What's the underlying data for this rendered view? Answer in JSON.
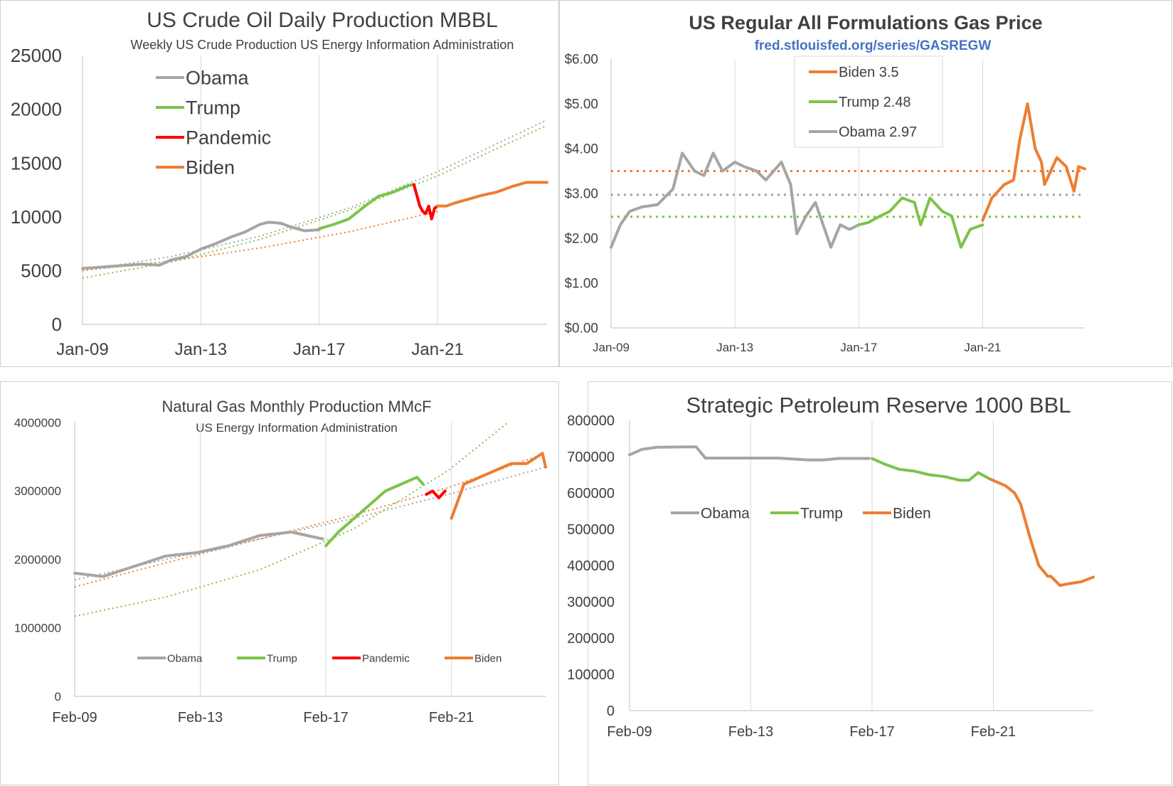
{
  "colors": {
    "obama": "#a5a5a5",
    "trump": "#7dc34a",
    "pandemic": "#ff0000",
    "biden": "#ed7d31",
    "axis": "#404040",
    "grid": "#d9d9d9",
    "link": "#4472c4"
  },
  "chart_data": [
    {
      "type": "line",
      "title": "US Crude Oil Daily Production MBBL",
      "subtitle": "Weekly US Crude Production US Energy Information Administration",
      "xlabel": "",
      "ylabel": "",
      "x_ticks": [
        "Jan-09",
        "Jan-13",
        "Jan-17",
        "Jan-21"
      ],
      "x_tick_years": [
        2009,
        2013,
        2017,
        2021
      ],
      "xlim": [
        2009.0,
        2024.7
      ],
      "ylim": [
        0,
        25000
      ],
      "y_ticks": [
        0,
        5000,
        10000,
        15000,
        20000,
        25000
      ],
      "grid": "vertical",
      "legend": "top-left",
      "series": [
        {
          "name": "Obama",
          "color_key": "obama",
          "x": [
            2009.0,
            2010.0,
            2011.0,
            2011.6,
            2012.0,
            2012.5,
            2013.0,
            2013.5,
            2014.0,
            2014.5,
            2015.0,
            2015.3,
            2015.7,
            2016.0,
            2016.5,
            2017.0
          ],
          "y": [
            5200,
            5400,
            5600,
            5500,
            6000,
            6300,
            7000,
            7500,
            8100,
            8600,
            9300,
            9500,
            9400,
            9100,
            8700,
            8800
          ]
        },
        {
          "name": "Trump",
          "color_key": "trump",
          "x": [
            2017.0,
            2017.5,
            2018.0,
            2018.5,
            2019.0,
            2019.5,
            2020.0,
            2020.2
          ],
          "y": [
            8900,
            9300,
            9800,
            10900,
            11900,
            12300,
            12900,
            13000
          ]
        },
        {
          "name": "Pandemic",
          "color_key": "pandemic",
          "x": [
            2020.2,
            2020.3,
            2020.4,
            2020.5,
            2020.6,
            2020.7,
            2020.8,
            2020.9,
            2021.0
          ],
          "y": [
            13000,
            12000,
            11000,
            10500,
            10300,
            11000,
            9800,
            10800,
            11000
          ]
        },
        {
          "name": "Biden",
          "color_key": "biden",
          "x": [
            2021.0,
            2021.3,
            2021.6,
            2022.0,
            2022.5,
            2023.0,
            2023.5,
            2024.0,
            2024.7
          ],
          "y": [
            11000,
            11000,
            11300,
            11600,
            12000,
            12300,
            12800,
            13200,
            13200
          ]
        }
      ],
      "trendlines": [
        {
          "color_key": "obama",
          "x": [
            2009.0,
            2012.0,
            2015.0,
            2018.0,
            2021.0,
            2024.7
          ],
          "y": [
            5000,
            6300,
            8200,
            10800,
            14200,
            19000
          ]
        },
        {
          "color_key": "trump",
          "x": [
            2009.0,
            2012.0,
            2015.0,
            2018.0,
            2021.0,
            2024.7
          ],
          "y": [
            4300,
            5800,
            7900,
            10600,
            13800,
            18500
          ]
        },
        {
          "color_key": "biden",
          "x": [
            2009.0,
            2012.0,
            2015.0,
            2018.0,
            2021.0
          ],
          "y": [
            5000,
            5900,
            7100,
            8600,
            10500
          ]
        }
      ]
    },
    {
      "type": "line",
      "title": "US Regular All Formulations Gas Price",
      "subtitle": "fred.stlouisfed.org/series/GASREGW",
      "xlabel": "",
      "ylabel": "",
      "x_ticks": [
        "Jan-09",
        "Jan-13",
        "Jan-17",
        "Jan-21"
      ],
      "x_tick_years": [
        2009,
        2013,
        2017,
        2021
      ],
      "xlim": [
        2009.0,
        2024.3
      ],
      "ylim": [
        0,
        6
      ],
      "y_ticks": [
        "$0.00",
        "$1.00",
        "$2.00",
        "$3.00",
        "$4.00",
        "$5.00",
        "$6.00"
      ],
      "grid": "vertical",
      "legend": "top-center",
      "series": [
        {
          "name": "Obama 2.97",
          "color_key": "obama",
          "x": [
            2009.0,
            2009.3,
            2009.6,
            2010.0,
            2010.5,
            2011.0,
            2011.3,
            2011.7,
            2012.0,
            2012.3,
            2012.6,
            2013.0,
            2013.3,
            2013.7,
            2014.0,
            2014.5,
            2014.8,
            2015.0,
            2015.3,
            2015.6,
            2015.9,
            2016.1,
            2016.4,
            2016.7,
            2017.0
          ],
          "y": [
            1.8,
            2.3,
            2.6,
            2.7,
            2.75,
            3.1,
            3.9,
            3.5,
            3.4,
            3.9,
            3.5,
            3.7,
            3.6,
            3.5,
            3.3,
            3.7,
            3.2,
            2.1,
            2.5,
            2.8,
            2.2,
            1.8,
            2.3,
            2.2,
            2.3
          ]
        },
        {
          "name": "Trump 2.48",
          "color_key": "trump",
          "x": [
            2017.0,
            2017.3,
            2017.7,
            2018.0,
            2018.4,
            2018.8,
            2019.0,
            2019.3,
            2019.7,
            2020.0,
            2020.3,
            2020.6,
            2021.0
          ],
          "y": [
            2.3,
            2.35,
            2.5,
            2.6,
            2.9,
            2.8,
            2.3,
            2.9,
            2.6,
            2.5,
            1.8,
            2.2,
            2.3
          ]
        },
        {
          "name": "Biden 3.5",
          "color_key": "biden",
          "x": [
            2021.0,
            2021.3,
            2021.7,
            2022.0,
            2022.2,
            2022.45,
            2022.7,
            2022.9,
            2023.0,
            2023.4,
            2023.7,
            2023.95,
            2024.1,
            2024.3
          ],
          "y": [
            2.4,
            2.9,
            3.2,
            3.3,
            4.2,
            5.0,
            4.0,
            3.7,
            3.2,
            3.8,
            3.6,
            3.05,
            3.6,
            3.55
          ]
        }
      ],
      "reference_lines": [
        {
          "color_key": "biden",
          "y": 3.5
        },
        {
          "color_key": "obama",
          "y": 2.97
        },
        {
          "color_key": "trump",
          "y": 2.48
        }
      ]
    },
    {
      "type": "line",
      "title": "Natural Gas Monthly Production MMcF",
      "subtitle": "US Energy Information Administration",
      "xlabel": "",
      "ylabel": "",
      "x_ticks": [
        "Feb-09",
        "Feb-13",
        "Feb-17",
        "Feb-21"
      ],
      "x_tick_years": [
        2009.1,
        2013.1,
        2017.1,
        2021.1
      ],
      "xlim": [
        2009.1,
        2024.1
      ],
      "ylim": [
        0,
        4000000
      ],
      "y_ticks": [
        0,
        1000000,
        2000000,
        3000000,
        4000000
      ],
      "grid": "vertical",
      "legend": "bottom",
      "series": [
        {
          "name": "Obama",
          "color_key": "obama",
          "x": [
            2009.1,
            2010.0,
            2011.0,
            2012.0,
            2013.0,
            2014.0,
            2015.0,
            2016.0,
            2017.0
          ],
          "y": [
            1800000,
            1750000,
            1900000,
            2050000,
            2100000,
            2200000,
            2350000,
            2400000,
            2300000
          ]
        },
        {
          "name": "Trump",
          "color_key": "trump",
          "x": [
            2017.1,
            2017.5,
            2018.0,
            2018.5,
            2019.0,
            2019.5,
            2020.0,
            2020.2
          ],
          "y": [
            2200000,
            2400000,
            2600000,
            2800000,
            3000000,
            3100000,
            3200000,
            3100000
          ]
        },
        {
          "name": "Pandemic",
          "color_key": "pandemic",
          "x": [
            2020.3,
            2020.5,
            2020.7,
            2020.9
          ],
          "y": [
            2950000,
            3000000,
            2900000,
            3000000
          ]
        },
        {
          "name": "Biden",
          "color_key": "biden",
          "x": [
            2021.1,
            2021.5,
            2022.0,
            2022.5,
            2023.0,
            2023.5,
            2024.0,
            2024.1
          ],
          "y": [
            2600000,
            3100000,
            3200000,
            3300000,
            3400000,
            3400000,
            3550000,
            3350000
          ]
        }
      ],
      "trendlines": [
        {
          "color_key": "obama",
          "x": [
            2009.1,
            2012.0,
            2015.0,
            2018.0,
            2021.0,
            2024.1
          ],
          "y": [
            1700000,
            2000000,
            2300000,
            2600000,
            2950000,
            3350000
          ]
        },
        {
          "color_key": "biden",
          "x": [
            2009.1,
            2012.0,
            2015.0,
            2018.0,
            2021.0,
            2024.1
          ],
          "y": [
            1600000,
            1950000,
            2300000,
            2650000,
            3050000,
            3550000
          ]
        },
        {
          "color_key": "trump",
          "x": [
            2009.1,
            2012.0,
            2015.0,
            2018.0,
            2021.0,
            2022.9
          ],
          "y": [
            1170000,
            1450000,
            1850000,
            2450000,
            3300000,
            4000000
          ]
        }
      ]
    },
    {
      "type": "line",
      "title": "Strategic Petroleum Reserve 1000 BBL",
      "subtitle": "",
      "xlabel": "",
      "ylabel": "",
      "x_ticks": [
        "Feb-09",
        "Feb-13",
        "Feb-17",
        "Feb-21"
      ],
      "x_tick_years": [
        2009.1,
        2013.1,
        2017.1,
        2021.1
      ],
      "xlim": [
        2009.1,
        2024.4
      ],
      "ylim": [
        0,
        800000
      ],
      "y_ticks": [
        0,
        100000,
        200000,
        300000,
        400000,
        500000,
        600000,
        700000,
        800000
      ],
      "grid": "vertical",
      "legend": "middle-left",
      "series": [
        {
          "name": "Obama",
          "color_key": "obama",
          "x": [
            2009.1,
            2009.5,
            2010.0,
            2011.0,
            2011.3,
            2011.6,
            2012.0,
            2013.0,
            2014.0,
            2015.0,
            2015.5,
            2016.0,
            2017.0
          ],
          "y": [
            705000,
            720000,
            726000,
            727000,
            727000,
            696000,
            696000,
            696000,
            696000,
            691000,
            691000,
            695000,
            695000
          ]
        },
        {
          "name": "Trump",
          "color_key": "trump",
          "x": [
            2017.1,
            2017.5,
            2018.0,
            2018.5,
            2019.0,
            2019.5,
            2020.0,
            2020.3,
            2020.6,
            2021.0
          ],
          "y": [
            695000,
            680000,
            665000,
            660000,
            650000,
            645000,
            635000,
            635000,
            656000,
            638000
          ]
        },
        {
          "name": "Biden",
          "color_key": "biden",
          "x": [
            2021.0,
            2021.5,
            2021.8,
            2022.0,
            2022.3,
            2022.6,
            2022.9,
            2023.0,
            2023.3,
            2023.6,
            2024.0,
            2024.4
          ],
          "y": [
            638000,
            620000,
            600000,
            570000,
            480000,
            400000,
            370000,
            370000,
            345000,
            350000,
            355000,
            368000
          ]
        }
      ]
    }
  ]
}
